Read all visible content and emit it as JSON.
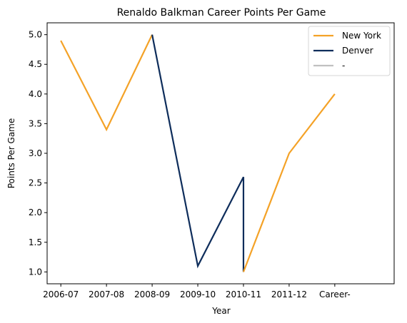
{
  "chart_data": {
    "type": "line",
    "title": "Renaldo Balkman Career Points Per Game",
    "xlabel": "Year",
    "ylabel": "Points Per Game",
    "categories": [
      "2006-07",
      "2007-08",
      "2008-09",
      "2009-10",
      "2010-11",
      "2011-12",
      "Career-"
    ],
    "ylim": [
      0.8,
      5.2
    ],
    "yticks": [
      "1.0",
      "1.5",
      "2.0",
      "2.5",
      "3.0",
      "3.5",
      "4.0",
      "4.5",
      "5.0"
    ],
    "grid": false,
    "legend_position": "upper right",
    "series": [
      {
        "name": "New York",
        "color": "#f4a227",
        "points": [
          [
            "2006-07",
            4.9
          ],
          [
            "2007-08",
            3.4
          ],
          [
            "2008-09",
            5.0
          ]
        ]
      },
      {
        "name": "Denver",
        "color": "#0e2d5b",
        "points": [
          [
            "2008-09",
            5.0
          ],
          [
            "2009-10",
            1.1
          ],
          [
            "2010-11",
            2.6
          ],
          [
            "2010-11",
            1.0
          ]
        ]
      },
      {
        "name": "New York",
        "color": "#f4a227",
        "points": [
          [
            "2010-11",
            1.0
          ],
          [
            "2011-12",
            3.0
          ],
          [
            "Career-",
            4.0
          ]
        ]
      }
    ],
    "legend": [
      {
        "label": "New York",
        "color": "#f4a227"
      },
      {
        "label": "Denver",
        "color": "#0e2d5b"
      },
      {
        "label": "-",
        "color": "#c0c0c0"
      }
    ]
  }
}
